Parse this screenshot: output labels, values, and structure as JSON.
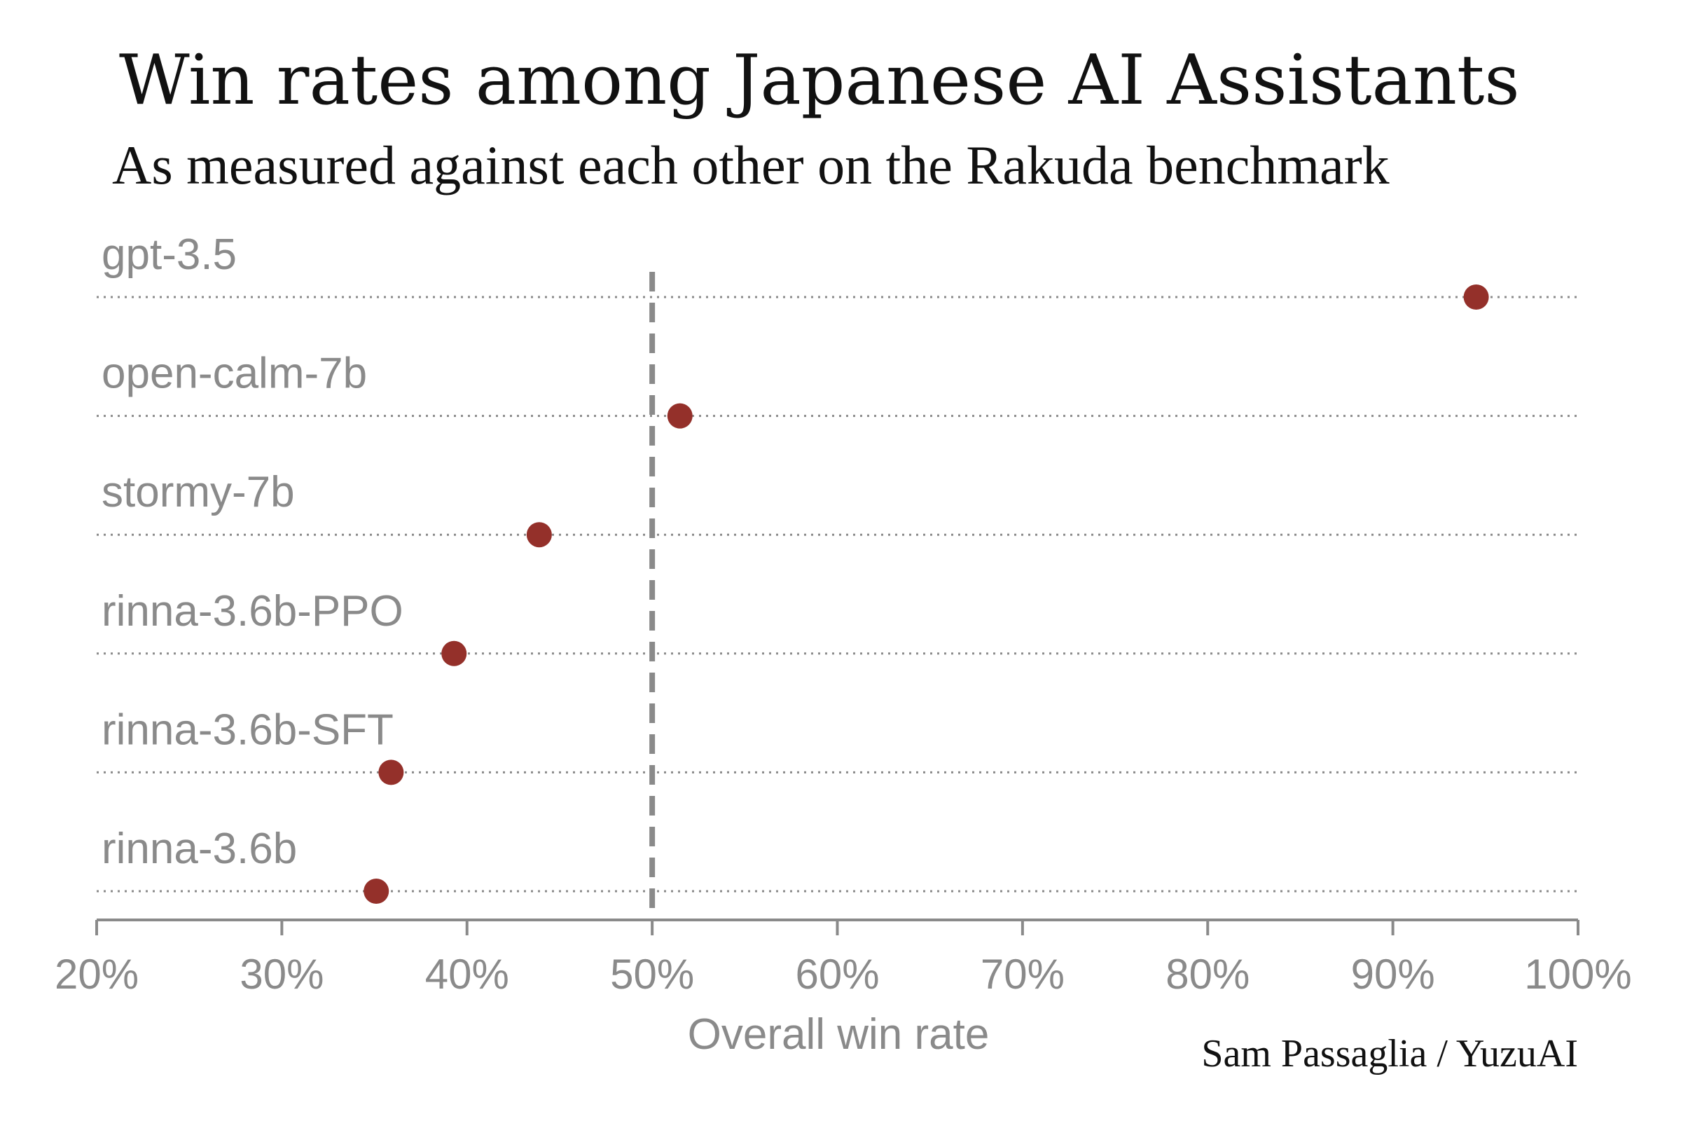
{
  "chart_data": {
    "type": "scatter",
    "title": "Win rates among Japanese AI Assistants",
    "subtitle": "As measured against each other on the Rakuda benchmark",
    "xlabel": "Overall win rate",
    "ylabel": "",
    "xlim": [
      20,
      100
    ],
    "x_ticks": [
      20,
      30,
      40,
      50,
      60,
      70,
      80,
      90,
      100
    ],
    "x_tick_labels": [
      "20%",
      "30%",
      "40%",
      "50%",
      "60%",
      "70%",
      "80%",
      "90%",
      "100%"
    ],
    "reference_line": {
      "x": 50,
      "style": "dashed"
    },
    "categories": [
      "gpt-3.5",
      "open-calm-7b",
      "stormy-7b",
      "rinna-3.6b-PPO",
      "rinna-3.6b-SFT",
      "rinna-3.6b"
    ],
    "values": [
      94.5,
      51.5,
      43.9,
      39.3,
      35.9,
      35.1
    ],
    "grid": "dotted horizontal",
    "credit": "Sam Passaglia / YuzuAI"
  },
  "colors": {
    "point": "#94302a",
    "axis": "#8a8a8a",
    "text": "#111111",
    "label": "#8a8a8a"
  }
}
